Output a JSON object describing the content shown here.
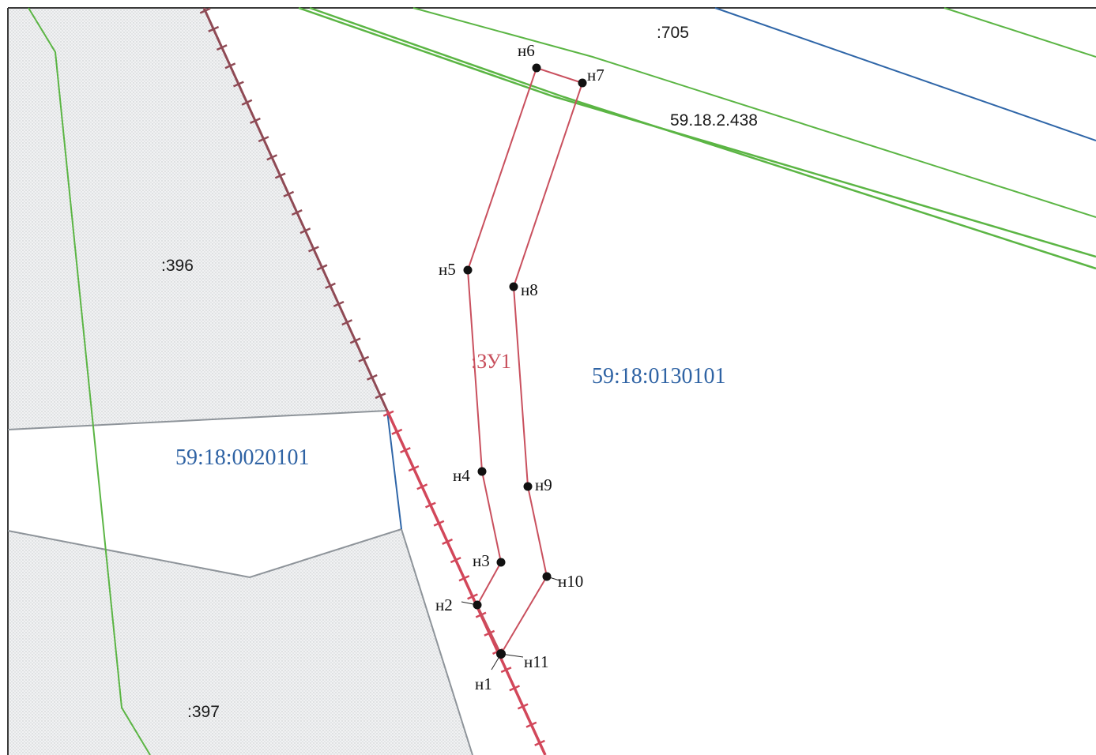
{
  "labels": {
    "parcel_705": ":705",
    "zone_label": "59.18.2.438",
    "parcel_396": ":396",
    "parcel_397": ":397",
    "quarter_0130101": "59:18:0130101",
    "quarter_0020101": "59:18:0020101",
    "plot_zu1": ":ЗУ1"
  },
  "points": {
    "n1": "н1",
    "n2": "н2",
    "n3": "н3",
    "n4": "н4",
    "n5": "н5",
    "n6": "н6",
    "n7": "н7",
    "n8": "н8",
    "n9": "н9",
    "n10": "н10",
    "n11": "н11"
  },
  "colors": {
    "zone_line": "#5bb544",
    "quarter_line": "#2f66a8",
    "red_line": "#d2475a",
    "plot_outline": "#c9505e",
    "parcel_border": "#8e949a",
    "hatch_fill": "#e9eaec",
    "quarter_text": "#2f63a4",
    "plot_text": "#c8505d"
  }
}
